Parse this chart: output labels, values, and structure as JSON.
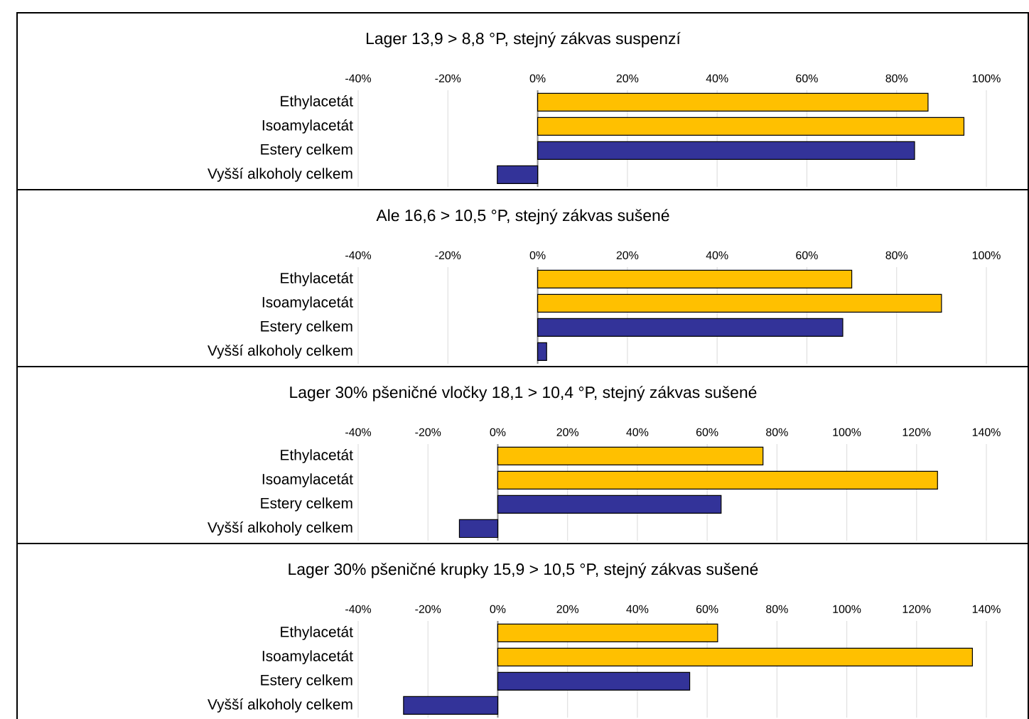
{
  "chart_data": [
    {
      "type": "bar",
      "orientation": "horizontal",
      "title": "Lager 13,9 > 8,8 °P, stejný zákvas suspenzí",
      "categories": [
        "Ethylacetát",
        "Isoamylacetát",
        "Estery celkem",
        "Vyšší alkoholy celkem"
      ],
      "values": [
        87,
        95,
        84,
        -9
      ],
      "colors": [
        "#ffc000",
        "#ffc000",
        "#333399",
        "#333399"
      ],
      "xlim": [
        -40,
        100
      ],
      "xticks": [
        {
          "value": -40,
          "label": "-40%"
        },
        {
          "value": -20,
          "label": "-20%"
        },
        {
          "value": 0,
          "label": "0%"
        },
        {
          "value": 20,
          "label": "20%"
        },
        {
          "value": 40,
          "label": "40%"
        },
        {
          "value": 60,
          "label": "60%"
        },
        {
          "value": 80,
          "label": "80%"
        },
        {
          "value": 100,
          "label": "100%"
        }
      ],
      "grid": "x"
    },
    {
      "type": "bar",
      "orientation": "horizontal",
      "title": "Ale 16,6 > 10,5 °P, stejný zákvas sušené",
      "categories": [
        "Ethylacetát",
        "Isoamylacetát",
        "Estery celkem",
        "Vyšší alkoholy celkem"
      ],
      "values": [
        70,
        90,
        68,
        2
      ],
      "colors": [
        "#ffc000",
        "#ffc000",
        "#333399",
        "#333399"
      ],
      "xlim": [
        -40,
        100
      ],
      "xticks": [
        {
          "value": -40,
          "label": "-40%"
        },
        {
          "value": -20,
          "label": "-20%"
        },
        {
          "value": 0,
          "label": "0%"
        },
        {
          "value": 20,
          "label": "20%"
        },
        {
          "value": 40,
          "label": "40%"
        },
        {
          "value": 60,
          "label": "60%"
        },
        {
          "value": 80,
          "label": "80%"
        },
        {
          "value": 100,
          "label": "100%"
        }
      ],
      "grid": "x"
    },
    {
      "type": "bar",
      "orientation": "horizontal",
      "title": "Lager 30% pšeničné vločky 18,1 > 10,4 °P, stejný zákvas sušené",
      "categories": [
        "Ethylacetát",
        "Isoamylacetát",
        "Estery celkem",
        "Vyšší alkoholy celkem"
      ],
      "values": [
        76,
        126,
        64,
        -11
      ],
      "colors": [
        "#ffc000",
        "#ffc000",
        "#333399",
        "#333399"
      ],
      "xlim": [
        -40,
        140
      ],
      "xticks": [
        {
          "value": -40,
          "label": "-40%"
        },
        {
          "value": -20,
          "label": "-20%"
        },
        {
          "value": 0,
          "label": "0%"
        },
        {
          "value": 20,
          "label": "20%"
        },
        {
          "value": 40,
          "label": "40%"
        },
        {
          "value": 60,
          "label": "60%"
        },
        {
          "value": 80,
          "label": "80%"
        },
        {
          "value": 100,
          "label": "100%"
        },
        {
          "value": 120,
          "label": "120%"
        },
        {
          "value": 140,
          "label": "140%"
        }
      ],
      "grid": "x"
    },
    {
      "type": "bar",
      "orientation": "horizontal",
      "title": "Lager 30% pšeničné krupky 15,9 > 10,5 °P, stejný zákvas sušené",
      "categories": [
        "Ethylacetát",
        "Isoamylacetát",
        "Estery celkem",
        "Vyšší alkoholy celkem"
      ],
      "values": [
        63,
        136,
        55,
        -27
      ],
      "colors": [
        "#ffc000",
        "#ffc000",
        "#333399",
        "#333399"
      ],
      "xlim": [
        -40,
        140
      ],
      "xticks": [
        {
          "value": -40,
          "label": "-40%"
        },
        {
          "value": -20,
          "label": "-20%"
        },
        {
          "value": 0,
          "label": "0%"
        },
        {
          "value": 20,
          "label": "20%"
        },
        {
          "value": 40,
          "label": "40%"
        },
        {
          "value": 60,
          "label": "60%"
        },
        {
          "value": 80,
          "label": "80%"
        },
        {
          "value": 100,
          "label": "100%"
        },
        {
          "value": 120,
          "label": "120%"
        },
        {
          "value": 140,
          "label": "140%"
        }
      ],
      "grid": "x"
    }
  ]
}
